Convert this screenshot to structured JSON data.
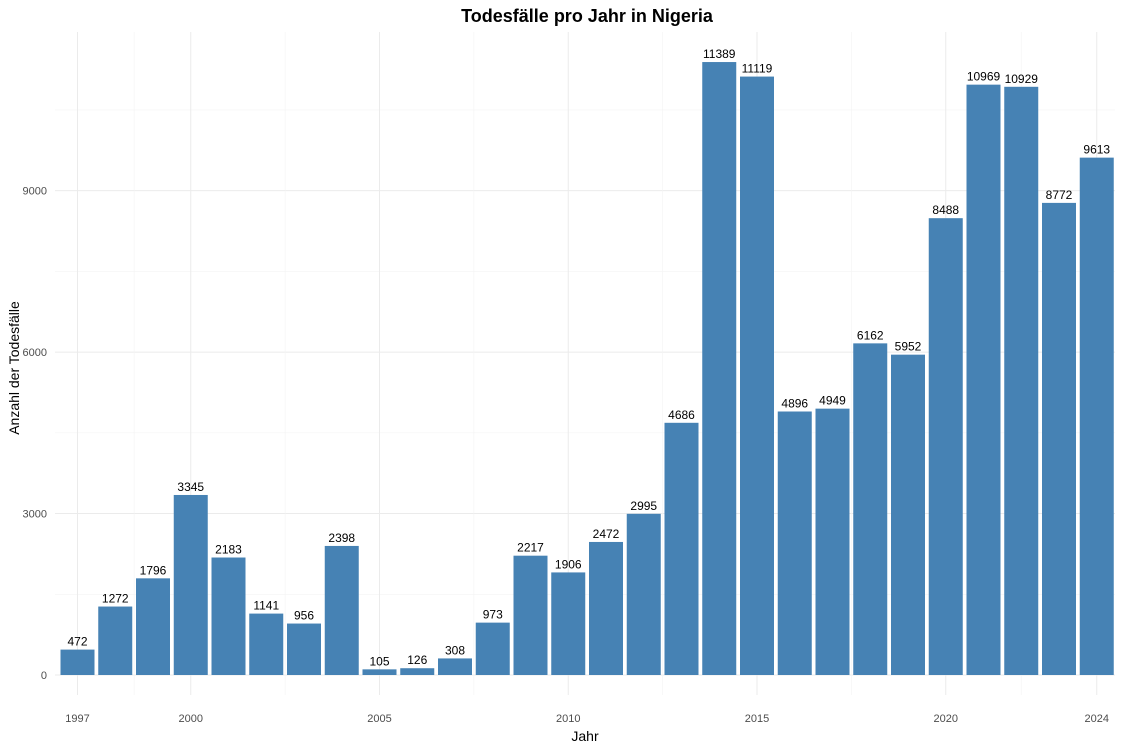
{
  "chart_data": {
    "type": "bar",
    "title": "Todesfälle pro Jahr in Nigeria",
    "xlabel": "Jahr",
    "ylabel": "Anzahl der Todesfälle",
    "categories": [
      1997,
      1998,
      1999,
      2000,
      2001,
      2002,
      2003,
      2004,
      2005,
      2006,
      2007,
      2008,
      2009,
      2010,
      2011,
      2012,
      2013,
      2014,
      2015,
      2016,
      2017,
      2018,
      2019,
      2020,
      2021,
      2022,
      2023,
      2024
    ],
    "values": [
      472,
      1272,
      1796,
      3345,
      2183,
      1141,
      956,
      2398,
      105,
      126,
      308,
      973,
      2217,
      1906,
      2472,
      2995,
      4686,
      11389,
      11119,
      4896,
      4949,
      6162,
      5952,
      8488,
      10969,
      10929,
      8772,
      9613
    ],
    "x_ticks": [
      1997,
      2000,
      2005,
      2010,
      2015,
      2020,
      2024
    ],
    "y_ticks": [
      0,
      3000,
      6000,
      9000
    ],
    "ylim": [
      -500,
      11900
    ],
    "grid": true,
    "legend": "none",
    "bar_color": "#4682B4"
  }
}
